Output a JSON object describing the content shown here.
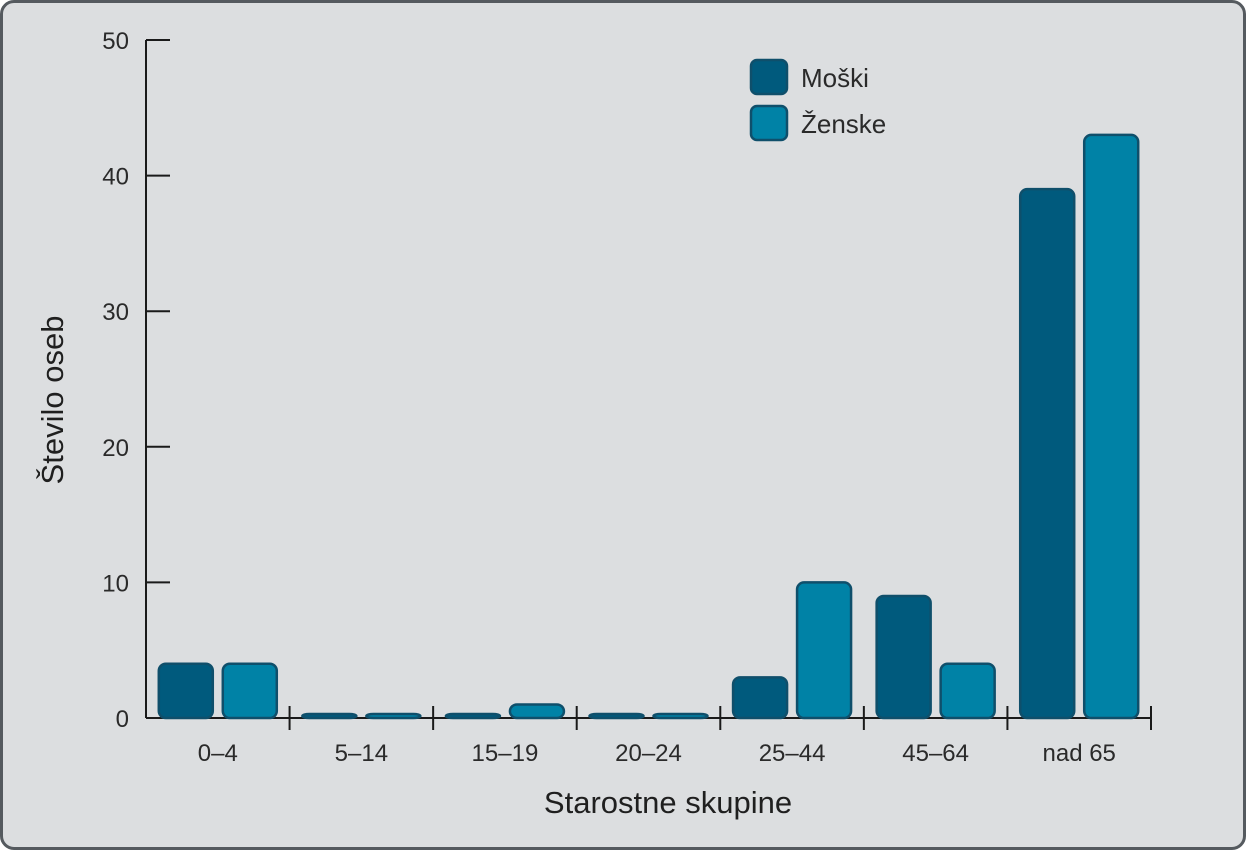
{
  "chart_data": {
    "type": "bar",
    "title": "",
    "xlabel": "Starostne skupine",
    "ylabel": "Število oseb",
    "categories": [
      "0–4",
      "5–14",
      "15–19",
      "20–24",
      "25–44",
      "45–64",
      "nad 65"
    ],
    "series": [
      {
        "name": "Moški",
        "color": "#005a7d",
        "values": [
          4,
          0,
          0,
          0,
          3,
          9,
          39
        ]
      },
      {
        "name": "Ženske",
        "color": "#0082a6",
        "values": [
          4,
          0,
          1,
          0,
          10,
          4,
          43
        ]
      }
    ],
    "ylim": [
      0,
      50
    ],
    "yticks": [
      0,
      10,
      20,
      30,
      40,
      50
    ],
    "grid": false,
    "legend_position": "top-right"
  }
}
